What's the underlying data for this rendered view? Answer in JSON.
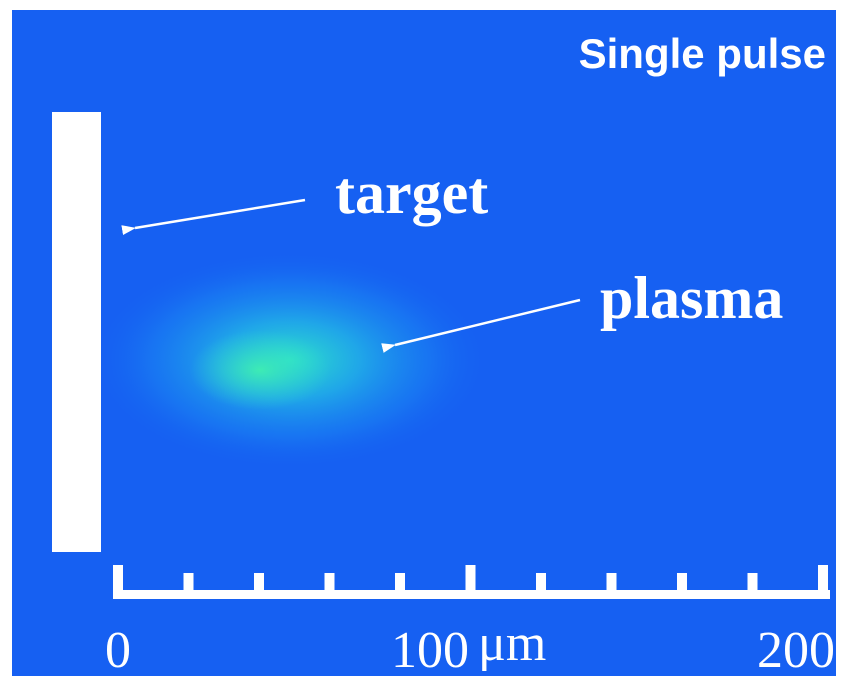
{
  "title": "Single pulse",
  "annotations": {
    "target": "target",
    "plasma": "plasma"
  },
  "scale": {
    "labels": [
      "0",
      "100",
      "200"
    ],
    "unit": "μm"
  }
}
